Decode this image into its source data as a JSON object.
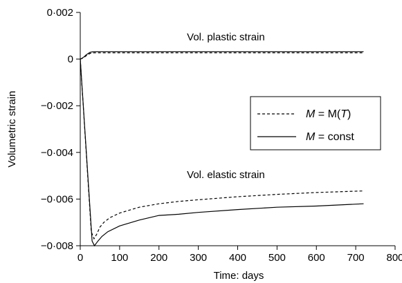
{
  "chart_data": {
    "type": "line",
    "xlabel": "Time: days",
    "ylabel": "Volumetric strain",
    "xlim": [
      0,
      800
    ],
    "ylim": [
      -0.008,
      0.002
    ],
    "x_ticks": [
      0,
      100,
      200,
      300,
      400,
      500,
      600,
      700,
      800
    ],
    "x_tick_labels": [
      "0",
      "100",
      "200",
      "300",
      "400",
      "500",
      "600",
      "700",
      "800"
    ],
    "y_ticks": [
      0.002,
      0,
      -0.002,
      -0.004,
      -0.006,
      -0.008
    ],
    "y_tick_labels": [
      "0·002",
      "0",
      "−0·002",
      "−0·004",
      "−0·006",
      "−0·008"
    ],
    "grid": false,
    "legend": {
      "placement": "right",
      "entries": [
        {
          "label": "M = M(T)",
          "math_symbol": "M",
          "equals": " = ",
          "value_pre": "M(",
          "value_italic": "T",
          "value_post": ")",
          "style": "dashed"
        },
        {
          "label": "M = const",
          "math_symbol": "M",
          "equals": " = ",
          "value_pre": "const",
          "value_italic": "",
          "value_post": "",
          "style": "solid"
        }
      ]
    },
    "annotations": [
      {
        "text": "Vol. plastic strain",
        "x": 370,
        "y": 0.0008
      },
      {
        "text": "Vol. elastic strain",
        "x": 370,
        "y": -0.0051
      }
    ],
    "series": [
      {
        "group": "plastic",
        "style": "dashed",
        "x": [
          0,
          5,
          10,
          15,
          20,
          25,
          30,
          35,
          720
        ],
        "y": [
          0,
          3e-05,
          8e-05,
          0.00014,
          0.0002,
          0.00024,
          0.00026,
          0.00027,
          0.00027
        ]
      },
      {
        "group": "plastic",
        "style": "solid",
        "x": [
          0,
          5,
          10,
          15,
          20,
          25,
          30,
          35,
          720
        ],
        "y": [
          0,
          4e-05,
          0.0001,
          0.00018,
          0.00024,
          0.00029,
          0.00031,
          0.00032,
          0.00032
        ]
      },
      {
        "group": "elastic",
        "style": "dashed",
        "x": [
          0,
          28,
          35,
          42,
          50,
          60,
          75,
          100,
          150,
          200,
          250,
          300,
          400,
          500,
          600,
          720
        ],
        "y": [
          0,
          -0.0074,
          -0.0077,
          -0.0075,
          -0.0072,
          -0.007,
          -0.0068,
          -0.0066,
          -0.00635,
          -0.0062,
          -0.0061,
          -0.00603,
          -0.0059,
          -0.0058,
          -0.00572,
          -0.00565
        ]
      },
      {
        "group": "elastic",
        "style": "solid",
        "x": [
          0,
          30,
          36,
          45,
          55,
          70,
          100,
          150,
          200,
          250,
          300,
          400,
          500,
          600,
          720
        ],
        "y": [
          0,
          -0.0078,
          -0.008,
          -0.0078,
          -0.0076,
          -0.0074,
          -0.00715,
          -0.0069,
          -0.0067,
          -0.00665,
          -0.00657,
          -0.00645,
          -0.00635,
          -0.0063,
          -0.0062
        ]
      }
    ]
  }
}
